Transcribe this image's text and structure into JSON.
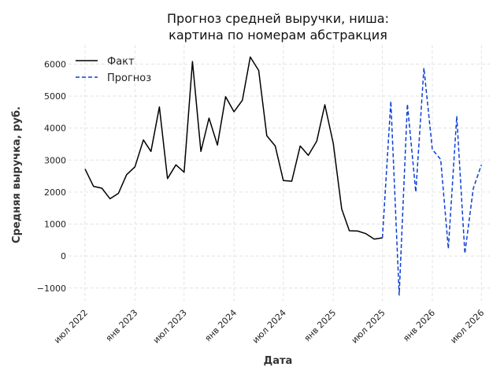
{
  "chart_data": {
    "type": "line",
    "title": "Прогноз средней выручки, ниша:",
    "subtitle": "картина по номерам абстракция",
    "xlabel": "Дата",
    "ylabel": "Средняя выручка, руб.",
    "ylim": [
      -1400,
      6600
    ],
    "xlim": [
      "2022-05-01",
      "2026-08-01"
    ],
    "yticks": [
      -1000,
      0,
      1000,
      2000,
      3000,
      4000,
      5000,
      6000
    ],
    "ytick_labels": [
      "−1000",
      "0",
      "1000",
      "2000",
      "3000",
      "4000",
      "5000",
      "6000"
    ],
    "xticks": [
      {
        "date": "2022-07-01",
        "label": "июл 2022"
      },
      {
        "date": "2023-01-01",
        "label": "янв 2023"
      },
      {
        "date": "2023-07-01",
        "label": "июл 2023"
      },
      {
        "date": "2024-01-01",
        "label": "янв 2024"
      },
      {
        "date": "2024-07-01",
        "label": "июл 2024"
      },
      {
        "date": "2025-01-01",
        "label": "янв 2025"
      },
      {
        "date": "2025-07-01",
        "label": "июл 2025"
      },
      {
        "date": "2026-01-01",
        "label": "янв 2026"
      },
      {
        "date": "2026-07-01",
        "label": "июл 2026"
      }
    ],
    "grid": true,
    "legend_position": "top-left",
    "series": [
      {
        "name": "Факт",
        "color": "#000000",
        "style": "solid",
        "points": [
          {
            "x": "2022-07-01",
            "y": 2720
          },
          {
            "x": "2022-08-01",
            "y": 2180
          },
          {
            "x": "2022-09-01",
            "y": 2120
          },
          {
            "x": "2022-10-01",
            "y": 1790
          },
          {
            "x": "2022-11-01",
            "y": 1960
          },
          {
            "x": "2022-12-01",
            "y": 2540
          },
          {
            "x": "2023-01-01",
            "y": 2790
          },
          {
            "x": "2023-02-01",
            "y": 3630
          },
          {
            "x": "2023-03-01",
            "y": 3270
          },
          {
            "x": "2023-04-01",
            "y": 4660
          },
          {
            "x": "2023-05-01",
            "y": 2420
          },
          {
            "x": "2023-06-01",
            "y": 2850
          },
          {
            "x": "2023-07-01",
            "y": 2620
          },
          {
            "x": "2023-08-01",
            "y": 6080
          },
          {
            "x": "2023-09-01",
            "y": 3270
          },
          {
            "x": "2023-10-01",
            "y": 4310
          },
          {
            "x": "2023-11-01",
            "y": 3470
          },
          {
            "x": "2023-12-01",
            "y": 4980
          },
          {
            "x": "2024-01-01",
            "y": 4510
          },
          {
            "x": "2024-02-01",
            "y": 4870
          },
          {
            "x": "2024-03-01",
            "y": 6220
          },
          {
            "x": "2024-04-01",
            "y": 5800
          },
          {
            "x": "2024-05-01",
            "y": 3760
          },
          {
            "x": "2024-06-01",
            "y": 3440
          },
          {
            "x": "2024-07-01",
            "y": 2360
          },
          {
            "x": "2024-08-01",
            "y": 2340
          },
          {
            "x": "2024-09-01",
            "y": 3440
          },
          {
            "x": "2024-10-01",
            "y": 3150
          },
          {
            "x": "2024-11-01",
            "y": 3590
          },
          {
            "x": "2024-12-01",
            "y": 4730
          },
          {
            "x": "2025-01-01",
            "y": 3520
          },
          {
            "x": "2025-02-01",
            "y": 1470
          },
          {
            "x": "2025-03-01",
            "y": 790
          },
          {
            "x": "2025-04-01",
            "y": 780
          },
          {
            "x": "2025-05-01",
            "y": 700
          },
          {
            "x": "2025-06-01",
            "y": 530
          },
          {
            "x": "2025-07-01",
            "y": 570
          }
        ]
      },
      {
        "name": "Прогноз",
        "color": "#0a3fd6",
        "style": "dashed",
        "points": [
          {
            "x": "2025-07-01",
            "y": 570
          },
          {
            "x": "2025-08-01",
            "y": 4840
          },
          {
            "x": "2025-09-01",
            "y": -1220
          },
          {
            "x": "2025-10-01",
            "y": 4750
          },
          {
            "x": "2025-11-01",
            "y": 2000
          },
          {
            "x": "2025-12-01",
            "y": 5880
          },
          {
            "x": "2026-01-01",
            "y": 3330
          },
          {
            "x": "2026-02-01",
            "y": 3020
          },
          {
            "x": "2026-03-01",
            "y": 230
          },
          {
            "x": "2026-04-01",
            "y": 4370
          },
          {
            "x": "2026-05-01",
            "y": 80
          },
          {
            "x": "2026-06-01",
            "y": 2110
          },
          {
            "x": "2026-07-01",
            "y": 2850
          }
        ]
      }
    ]
  }
}
